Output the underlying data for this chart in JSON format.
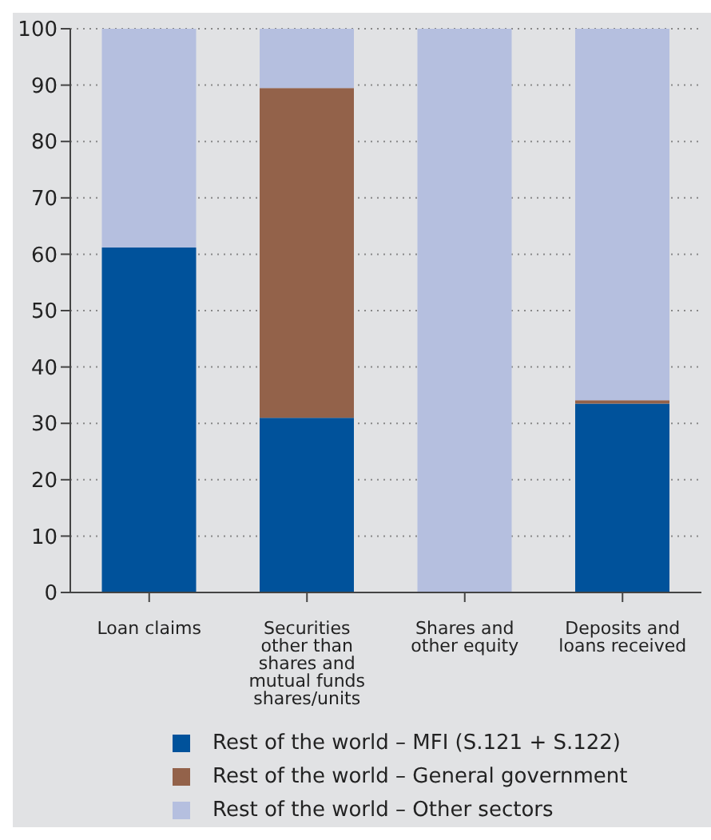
{
  "chart_data": {
    "type": "bar",
    "stacked": true,
    "categories": [
      "Loan claims",
      "Securities other than shares and mutual funds shares/units",
      "Shares and other equity",
      "Deposits and loans received"
    ],
    "series": [
      {
        "name": "Rest of the world – MFI (S.121 + S.122)",
        "color": "#00529b",
        "values": [
          61.2,
          31,
          0,
          33.5
        ]
      },
      {
        "name": "Rest of the world – General government",
        "color": "#93624a",
        "values": [
          0,
          58.5,
          0,
          0.6
        ]
      },
      {
        "name": "Rest of the world – Other sectors",
        "color": "#b5bfdf",
        "values": [
          38.8,
          10.5,
          100,
          65.9
        ]
      }
    ],
    "ylim": [
      0,
      100
    ],
    "yticks": [
      0,
      10,
      20,
      30,
      40,
      50,
      60,
      70,
      80,
      90,
      100
    ],
    "grid": "y",
    "legend": "bottom"
  }
}
